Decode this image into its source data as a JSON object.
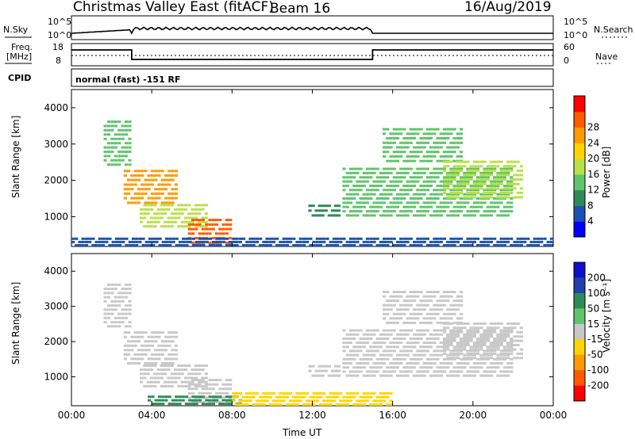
{
  "header": {
    "station": "Christmas Valley East (fitACF)",
    "beam": "Beam 16",
    "date": "16/Aug/2019"
  },
  "noise_panel": {
    "left_label": "N.Sky",
    "left_ticks": [
      "10^5",
      "10^0"
    ],
    "right_label": "N.Search",
    "right_ticks": [
      "10^5",
      "10^0"
    ]
  },
  "freq_panel": {
    "left_label_1": "Freq.",
    "left_label_2": "[MHz]",
    "left_ticks": [
      "18",
      "8"
    ],
    "right_label": "Nave",
    "right_ticks": [
      "60",
      "0"
    ]
  },
  "cpid_panel": {
    "label": "CPID",
    "text": "normal (fast) -151 RF"
  },
  "colors": {
    "power_scale": [
      "#0000ff",
      "#1e50b4",
      "#2e8b57",
      "#5fc46a",
      "#b9e04a",
      "#ffd400",
      "#ff9a00",
      "#ff5a00",
      "#ff0000"
    ],
    "velocity_scale": [
      "#1010c8",
      "#2040a8",
      "#2e8b57",
      "#5fc46a",
      "#c8c8c8",
      "#ffd400",
      "#ff9a00",
      "#ff5a00",
      "#ff0000"
    ]
  },
  "chart_data": [
    {
      "type": "heatmap",
      "name": "power",
      "ylabel": "Slant Range [km]",
      "xlabel": "",
      "ylim": [
        180,
        4500
      ],
      "yticks": [
        "1000",
        "2000",
        "3000",
        "4000"
      ],
      "colorbar_label": "Power [dB]",
      "colorbar_ticks": [
        "4",
        "8",
        "12",
        "16",
        "20",
        "24",
        "28"
      ],
      "clim": [
        0,
        32
      ],
      "regions": [
        {
          "t0": 1.6,
          "t1": 3.0,
          "r0": 2400,
          "r1": 3700,
          "value": 14
        },
        {
          "t0": 2.6,
          "t1": 5.3,
          "r0": 1350,
          "r1": 2350,
          "value": 24
        },
        {
          "t0": 3.4,
          "t1": 6.8,
          "r0": 700,
          "r1": 1400,
          "value": 16
        },
        {
          "t0": 5.8,
          "t1": 8.0,
          "r0": 250,
          "r1": 1000,
          "value": 26
        },
        {
          "t0": 11.8,
          "t1": 13.4,
          "r0": 1000,
          "r1": 1400,
          "value": 10
        },
        {
          "t0": 13.5,
          "t1": 22.0,
          "r0": 1000,
          "r1": 2400,
          "value": 12
        },
        {
          "t0": 15.5,
          "t1": 19.5,
          "r0": 2500,
          "r1": 3500,
          "value": 14
        },
        {
          "t0": 18.5,
          "t1": 22.5,
          "r0": 1500,
          "r1": 2600,
          "value": 16
        },
        {
          "t0": 0.0,
          "t1": 24.0,
          "r0": 180,
          "r1": 450,
          "value": 6
        }
      ]
    },
    {
      "type": "heatmap",
      "name": "velocity",
      "xlabel": "Time UT",
      "ylabel": "Slant Range [km]",
      "ylim": [
        180,
        4500
      ],
      "yticks": [
        "1000",
        "2000",
        "3000",
        "4000"
      ],
      "xticks": [
        "00:00",
        "04:00",
        "08:00",
        "12:00",
        "16:00",
        "20:00",
        "00:00"
      ],
      "xlim_hours": [
        0,
        24
      ],
      "colorbar_label": "Velocity [m s⁻¹]",
      "colorbar_ticks": [
        "200",
        "100",
        "50",
        "15",
        "-15",
        "-50",
        "-100",
        "-200"
      ],
      "regions": [
        {
          "t0": 1.6,
          "t1": 3.0,
          "r0": 2400,
          "r1": 3700,
          "value": 0
        },
        {
          "t0": 2.6,
          "t1": 5.3,
          "r0": 1350,
          "r1": 2350,
          "value": 0
        },
        {
          "t0": 3.4,
          "t1": 6.8,
          "r0": 700,
          "r1": 1400,
          "value": 0
        },
        {
          "t0": 5.8,
          "t1": 8.0,
          "r0": 250,
          "r1": 1000,
          "value": 0
        },
        {
          "t0": 3.8,
          "t1": 8.5,
          "r0": 200,
          "r1": 500,
          "value": 60
        },
        {
          "t0": 8.0,
          "t1": 16.0,
          "r0": 180,
          "r1": 600,
          "value": -40
        },
        {
          "t0": 11.8,
          "t1": 13.4,
          "r0": 1000,
          "r1": 1400,
          "value": 0
        },
        {
          "t0": 13.5,
          "t1": 22.0,
          "r0": 1000,
          "r1": 2400,
          "value": 0
        },
        {
          "t0": 15.5,
          "t1": 19.5,
          "r0": 2500,
          "r1": 3500,
          "value": 0
        },
        {
          "t0": 18.5,
          "t1": 22.5,
          "r0": 1500,
          "r1": 2600,
          "value": 0
        }
      ]
    }
  ]
}
